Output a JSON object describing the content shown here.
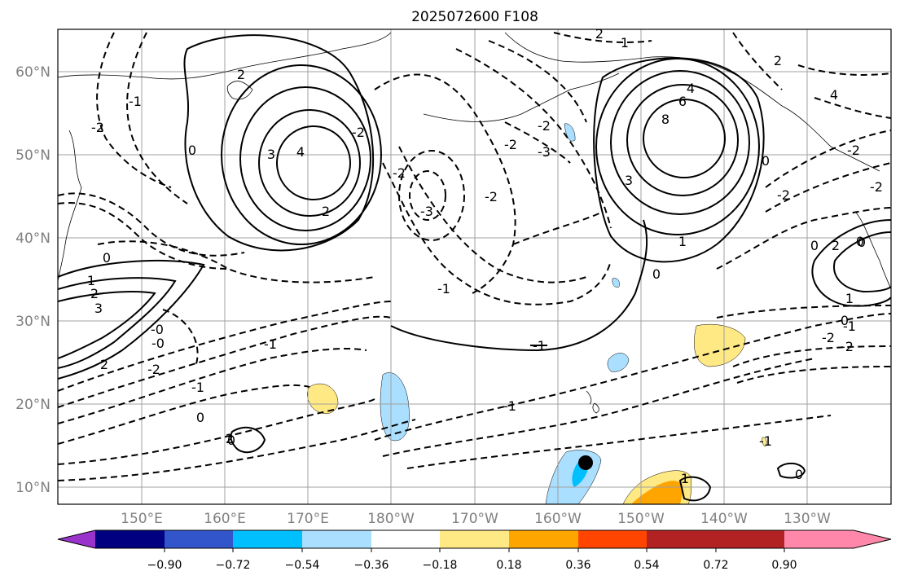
{
  "title": "2025072600 F108",
  "map": {
    "lat_labels": [
      "60°N",
      "50°N",
      "40°N",
      "30°N",
      "20°N",
      "10°N"
    ],
    "lon_labels": [
      "150°E",
      "160°E",
      "170°E",
      "180°W",
      "170°W",
      "160°W",
      "150°W",
      "140°W",
      "130°W"
    ],
    "contour_labels": [
      "2",
      "1",
      "-2",
      "-3",
      "2",
      "3",
      "4",
      "-2",
      "-1",
      "-2",
      "0",
      "-3",
      "-2",
      "-2",
      "2",
      "-2",
      "0",
      "4",
      "8",
      "6",
      "3",
      "-2",
      "2",
      "0",
      "-1",
      "4",
      "-2",
      "0",
      "2",
      "-2",
      "0",
      "1",
      "0",
      "1",
      "-1",
      "-1",
      "-1",
      "-0",
      "1",
      "2",
      "3",
      "-2",
      "-1",
      "-0",
      "2",
      "0",
      "2",
      "-1",
      "0",
      "-2",
      "-2",
      "-1",
      "0",
      "1",
      "0",
      "0"
    ],
    "marker": "storm-position"
  },
  "colorbar": {
    "colors": [
      "#9933cc",
      "#000080",
      "#3355cc",
      "#00bfff",
      "#aadfff",
      "#ffffff",
      "#ffe985",
      "#ffa500",
      "#ff4500",
      "#b22222",
      "#ff88aa"
    ],
    "ticks": [
      "−0.90",
      "−0.72",
      "−0.54",
      "−0.36",
      "−0.18",
      "0.18",
      "0.36",
      "0.54",
      "0.72",
      "0.90"
    ]
  }
}
